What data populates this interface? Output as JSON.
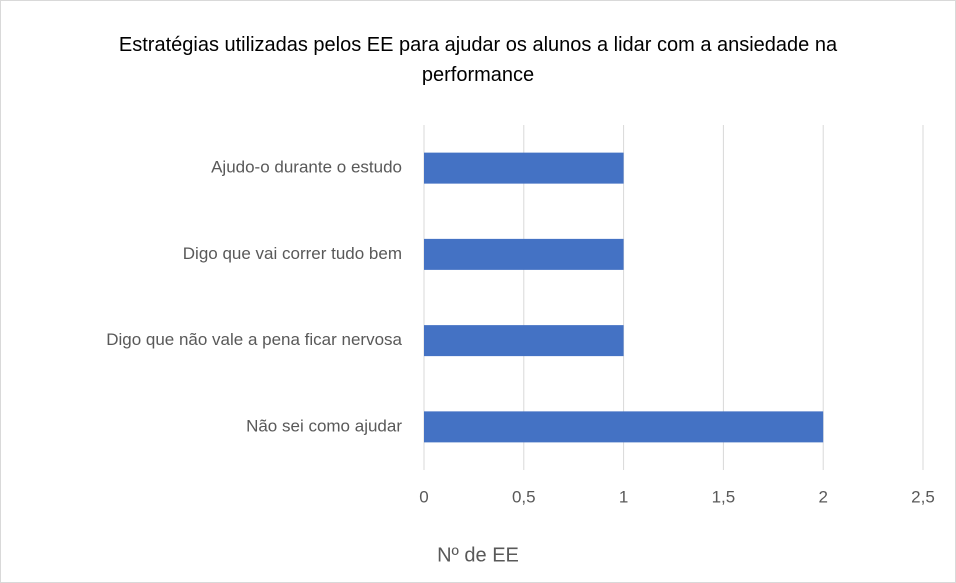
{
  "chart_data": {
    "type": "bar",
    "orientation": "horizontal",
    "title": "Estratégias utilizadas pelos EE para ajudar os alunos a lidar com a ansiedade na performance",
    "categories": [
      "Ajudo-o durante o estudo",
      "Digo que vai correr tudo bem",
      "Digo que não vale a pena ficar nervosa",
      "Não sei como ajudar"
    ],
    "values": [
      1,
      1,
      1,
      2
    ],
    "color": "#4472c4",
    "xlabel": "Nº de EE",
    "xlim": [
      0,
      2.5
    ],
    "xticks": [
      0,
      {
        "value": 0.5,
        "label": "0,5"
      },
      1,
      {
        "value": 1.5,
        "label": "1,5"
      },
      2,
      {
        "value": 2.5,
        "label": "2,5"
      }
    ],
    "grid": true
  }
}
